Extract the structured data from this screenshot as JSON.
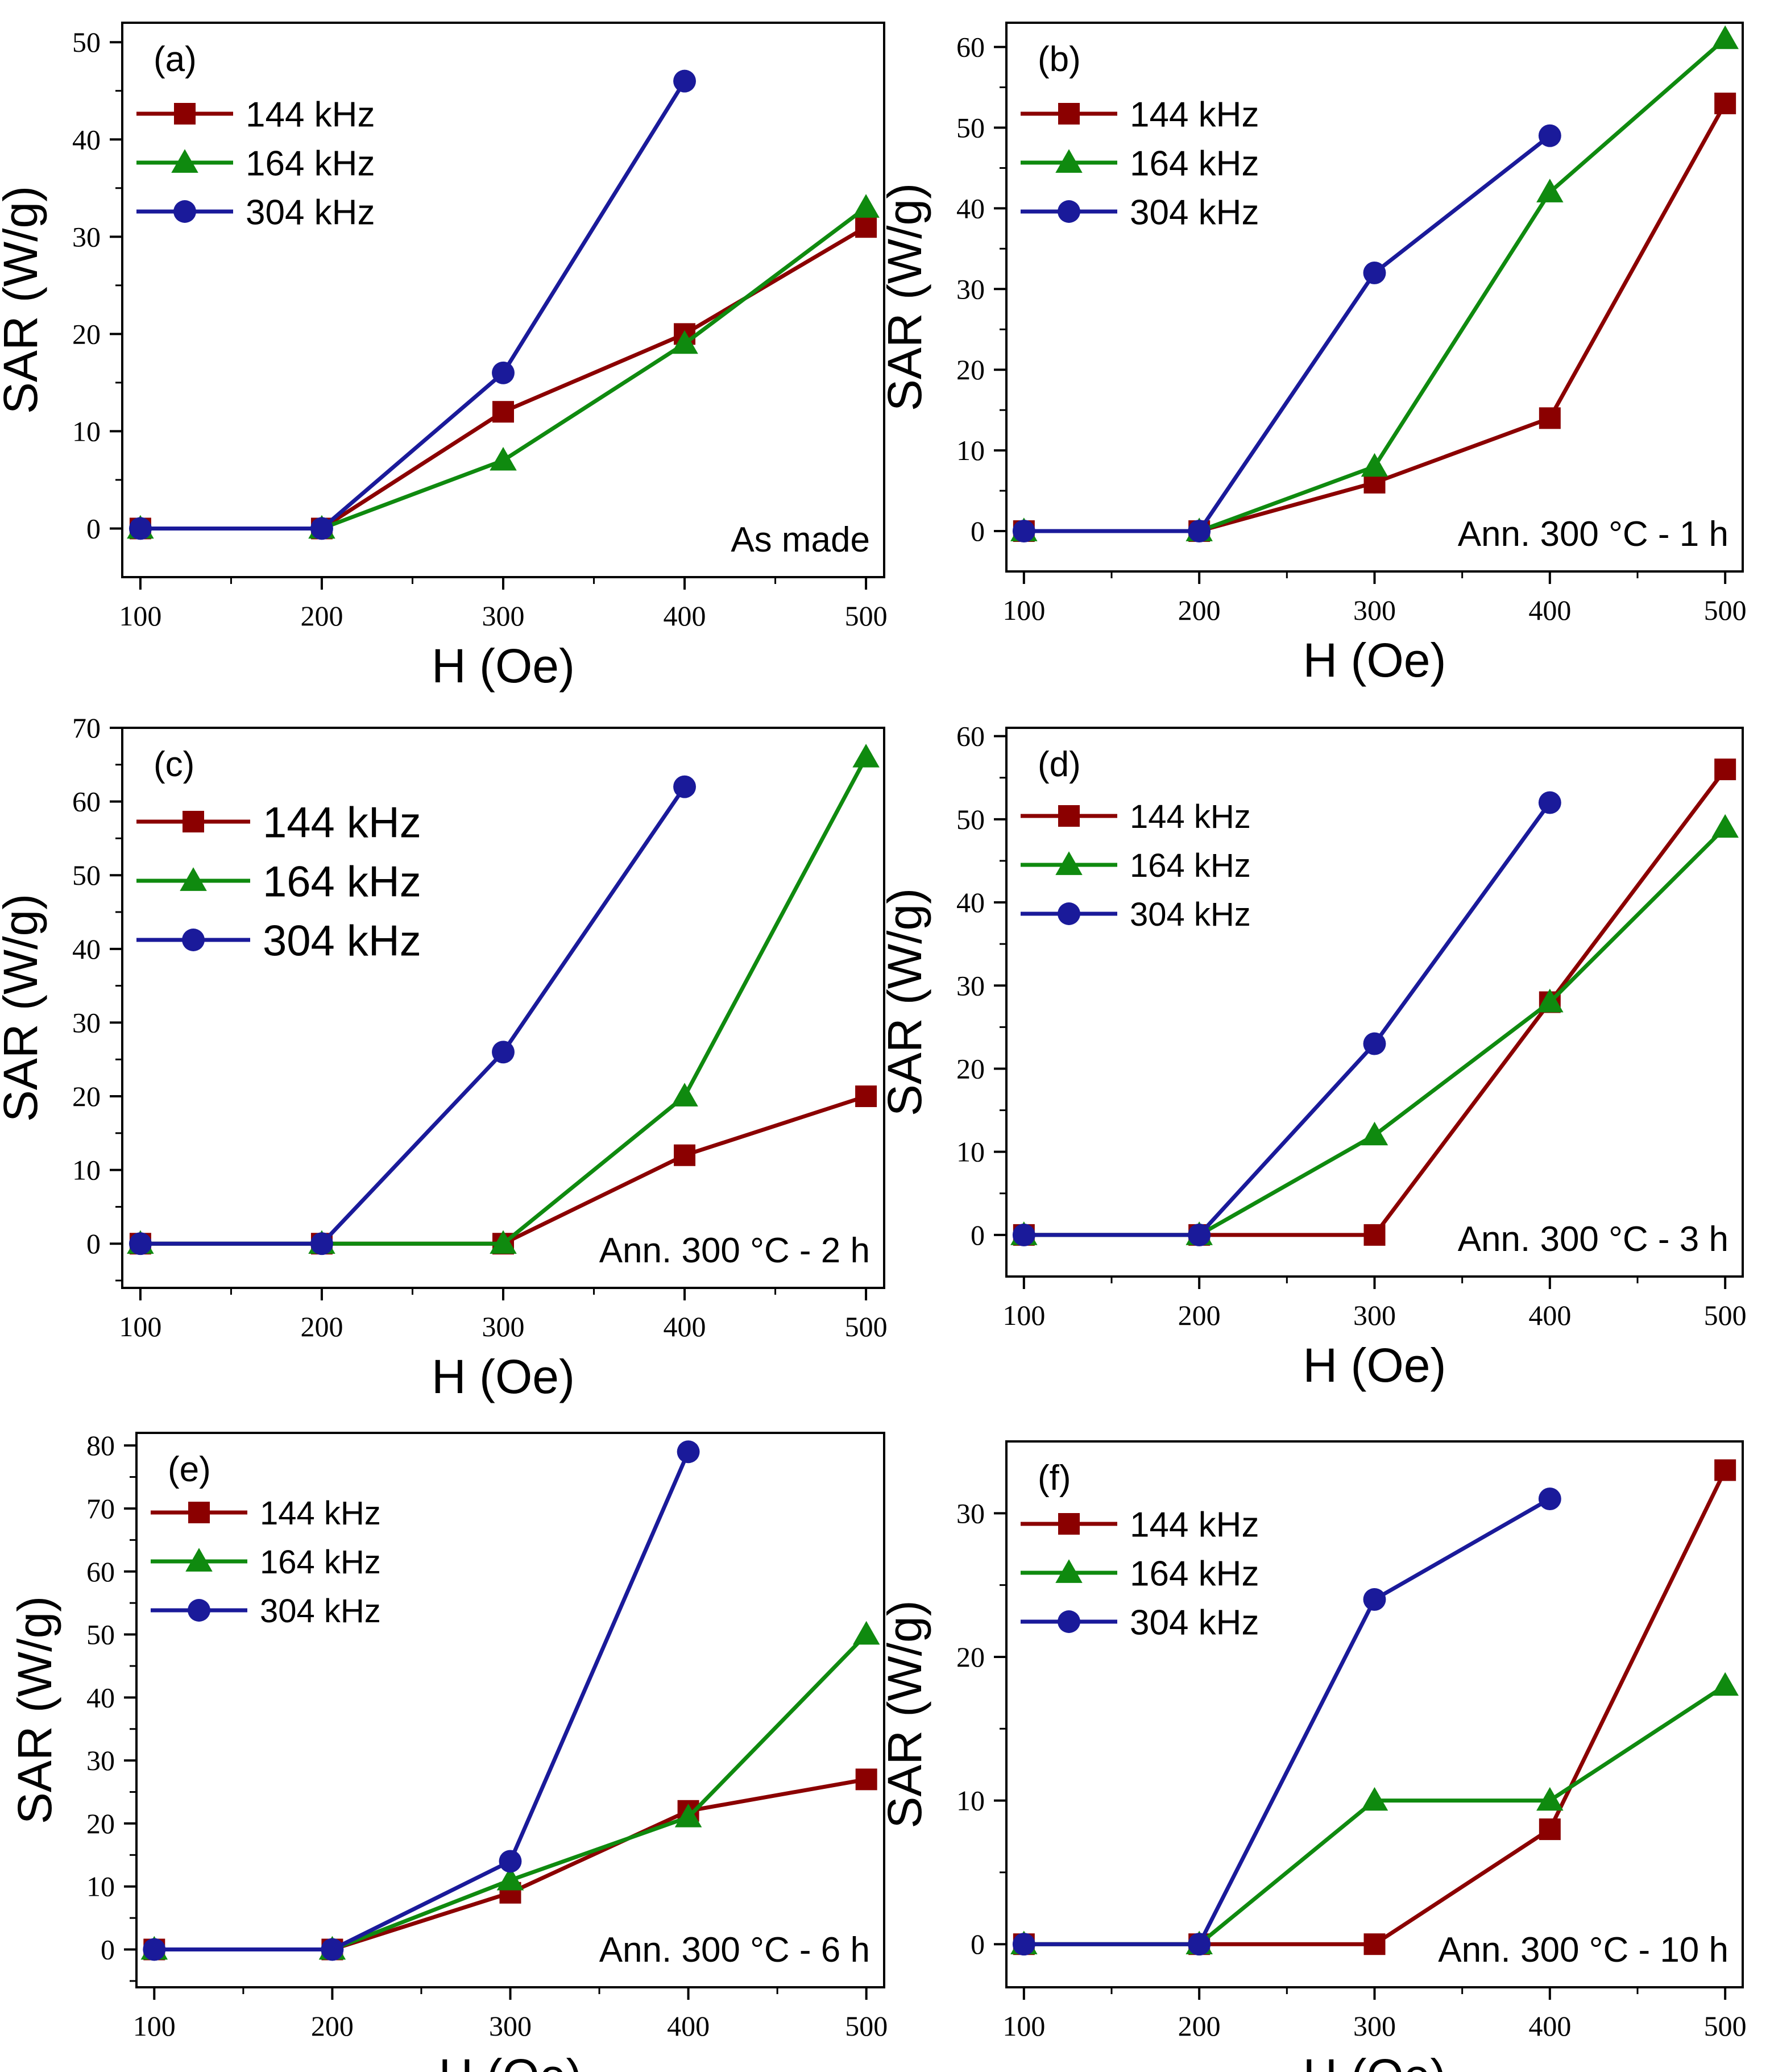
{
  "colors": {
    "144 kHz": "#8b0000",
    "164 kHz": "#0f8a0f",
    "304 kHz": "#1a1a9a",
    "axis": "#000000",
    "background": "#ffffff"
  },
  "chart_data": [
    {
      "type": "line",
      "panel_label": "(a)",
      "annotation": "As made",
      "xlabel": "H (Oe)",
      "ylabel": "SAR (W/g)",
      "xlim": [
        90,
        510
      ],
      "ylim": [
        -5,
        52
      ],
      "xticks": [
        100,
        200,
        300,
        400,
        500
      ],
      "yticks": [
        0,
        10,
        20,
        30,
        40,
        50
      ],
      "legend_position": "top-left",
      "series": [
        {
          "name": "144 kHz",
          "marker": "square",
          "x": [
            100,
            200,
            300,
            400,
            500
          ],
          "values": [
            0,
            0,
            12,
            20,
            31
          ]
        },
        {
          "name": "164 kHz",
          "marker": "triangle",
          "x": [
            100,
            200,
            300,
            400,
            500
          ],
          "values": [
            0,
            0,
            7,
            19,
            33
          ]
        },
        {
          "name": "304 kHz",
          "marker": "circle",
          "x": [
            100,
            200,
            300,
            400
          ],
          "values": [
            0,
            0,
            16,
            46
          ]
        }
      ]
    },
    {
      "type": "line",
      "panel_label": "(b)",
      "annotation": "Ann. 300 °C - 1 h",
      "xlabel": "H (Oe)",
      "ylabel": "SAR (W/g)",
      "xlim": [
        90,
        510
      ],
      "ylim": [
        -5,
        63
      ],
      "xticks": [
        100,
        200,
        300,
        400,
        500
      ],
      "yticks": [
        0,
        10,
        20,
        30,
        40,
        50,
        60
      ],
      "legend_position": "top-left",
      "series": [
        {
          "name": "144 kHz",
          "marker": "square",
          "x": [
            100,
            200,
            300,
            400,
            500
          ],
          "values": [
            0,
            0,
            6,
            14,
            53
          ]
        },
        {
          "name": "164 kHz",
          "marker": "triangle",
          "x": [
            100,
            200,
            300,
            400,
            500
          ],
          "values": [
            0,
            0,
            8,
            42,
            61
          ]
        },
        {
          "name": "304 kHz",
          "marker": "circle",
          "x": [
            100,
            200,
            300,
            400
          ],
          "values": [
            0,
            0,
            32,
            49
          ]
        }
      ]
    },
    {
      "type": "line",
      "panel_label": "(c)",
      "annotation": "Ann. 300 °C - 2 h",
      "xlabel": "H (Oe)",
      "ylabel": "SAR (W/g)",
      "xlim": [
        90,
        510
      ],
      "ylim": [
        -6,
        70
      ],
      "xticks": [
        100,
        200,
        300,
        400,
        500
      ],
      "yticks": [
        0,
        10,
        20,
        30,
        40,
        50,
        60,
        70
      ],
      "legend_position": "top-left",
      "series": [
        {
          "name": "144 kHz",
          "marker": "square",
          "x": [
            100,
            200,
            300,
            400,
            500
          ],
          "values": [
            0,
            0,
            0,
            12,
            20
          ]
        },
        {
          "name": "164 kHz",
          "marker": "triangle",
          "x": [
            100,
            200,
            300,
            400,
            500
          ],
          "values": [
            0,
            0,
            0,
            20,
            66
          ]
        },
        {
          "name": "304 kHz",
          "marker": "circle",
          "x": [
            100,
            200,
            300,
            400
          ],
          "values": [
            0,
            0,
            26,
            62
          ]
        }
      ]
    },
    {
      "type": "line",
      "panel_label": "(d)",
      "annotation": "Ann. 300 °C - 3 h",
      "xlabel": "H (Oe)",
      "ylabel": "SAR (W/g)",
      "xlim": [
        90,
        510
      ],
      "ylim": [
        -5,
        61
      ],
      "xticks": [
        100,
        200,
        300,
        400,
        500
      ],
      "yticks": [
        0,
        10,
        20,
        30,
        40,
        50,
        60
      ],
      "legend_position": "top-left",
      "series": [
        {
          "name": "144 kHz",
          "marker": "square",
          "x": [
            100,
            200,
            300,
            400,
            500
          ],
          "values": [
            0,
            0,
            0,
            28,
            56
          ]
        },
        {
          "name": "164 kHz",
          "marker": "triangle",
          "x": [
            100,
            200,
            300,
            400,
            500
          ],
          "values": [
            0,
            0,
            12,
            28,
            49
          ]
        },
        {
          "name": "304 kHz",
          "marker": "circle",
          "x": [
            100,
            200,
            300,
            400
          ],
          "values": [
            0,
            0,
            23,
            52
          ]
        }
      ]
    },
    {
      "type": "line",
      "panel_label": "(e)",
      "annotation": "Ann. 300 °C - 6 h",
      "xlabel": "H (Oe)",
      "ylabel": "SAR (W/g)",
      "xlim": [
        90,
        510
      ],
      "ylim": [
        -6,
        82
      ],
      "xticks": [
        100,
        200,
        300,
        400,
        500
      ],
      "yticks": [
        0,
        10,
        20,
        30,
        40,
        50,
        60,
        70,
        80
      ],
      "legend_position": "top-left",
      "series": [
        {
          "name": "144 kHz",
          "marker": "square",
          "x": [
            100,
            200,
            300,
            400,
            500
          ],
          "values": [
            0,
            0,
            9,
            22,
            27
          ]
        },
        {
          "name": "164 kHz",
          "marker": "triangle",
          "x": [
            100,
            200,
            300,
            400,
            500
          ],
          "values": [
            0,
            0,
            11,
            21,
            50
          ]
        },
        {
          "name": "304 kHz",
          "marker": "circle",
          "x": [
            100,
            200,
            300,
            400
          ],
          "values": [
            0,
            0,
            14,
            79
          ]
        }
      ]
    },
    {
      "type": "line",
      "panel_label": "(f)",
      "annotation": "Ann. 300 °C - 10 h",
      "xlabel": "H (Oe)",
      "ylabel": "SAR (W/g)",
      "xlim": [
        90,
        510
      ],
      "ylim": [
        -3,
        35
      ],
      "xticks": [
        100,
        200,
        300,
        400,
        500
      ],
      "yticks": [
        0,
        10,
        20,
        30
      ],
      "legend_position": "top-left",
      "series": [
        {
          "name": "144 kHz",
          "marker": "square",
          "x": [
            100,
            200,
            300,
            400,
            500
          ],
          "values": [
            0,
            0,
            0,
            8,
            33
          ]
        },
        {
          "name": "164 kHz",
          "marker": "triangle",
          "x": [
            100,
            200,
            300,
            400,
            500
          ],
          "values": [
            0,
            0,
            10,
            10,
            18
          ]
        },
        {
          "name": "304 kHz",
          "marker": "circle",
          "x": [
            100,
            200,
            300,
            400
          ],
          "values": [
            0,
            0,
            24,
            31
          ]
        }
      ]
    }
  ]
}
